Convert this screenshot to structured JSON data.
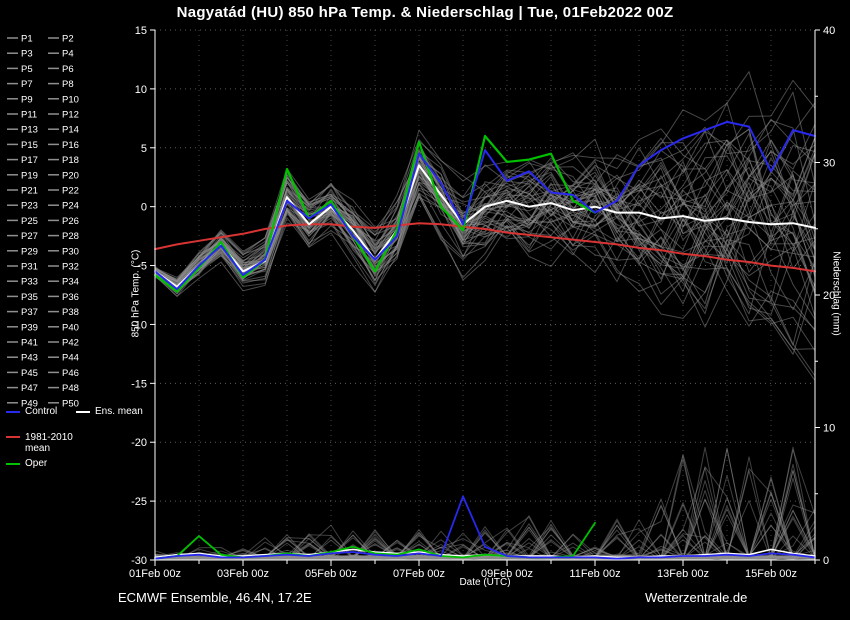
{
  "title": "Nagyatád  (HU)  850 hPa Temp. & Niederschlag | Tue, 01Feb2022 00Z",
  "footer": {
    "left": "ECMWF Ensemble, 46.4N, 17.2E",
    "right": "Wetterzentrale.de"
  },
  "axes": {
    "x_label": "Date (UTC)",
    "y_left_label": "850 hPa Temp. (°C)",
    "y_right_label": "Niederschlag (mm)",
    "x_tick_days": [
      0,
      2,
      4,
      6,
      8,
      10,
      12,
      14
    ],
    "x_tick_labels": [
      "01Feb 00z",
      "03Feb 00z",
      "05Feb 00z",
      "07Feb 00z",
      "09Feb 00z",
      "11Feb 00z",
      "13Feb 00z",
      "15Feb 00z"
    ],
    "temp_ticks": [
      15,
      10,
      5,
      0,
      -5,
      -10,
      -15,
      -20,
      -25,
      -30
    ],
    "precip_ticks": [
      40,
      30,
      20,
      10,
      0
    ],
    "temp_range": [
      -30,
      15
    ],
    "precip_range": [
      0,
      40
    ],
    "x_range_days": [
      0,
      15
    ],
    "grid": "dotted"
  },
  "legend": {
    "members": [
      "P1",
      "P2",
      "P3",
      "P4",
      "P5",
      "P6",
      "P7",
      "P8",
      "P9",
      "P10",
      "P11",
      "P12",
      "P13",
      "P14",
      "P15",
      "P16",
      "P17",
      "P18",
      "P19",
      "P20",
      "P21",
      "P22",
      "P23",
      "P24",
      "P25",
      "P26",
      "P27",
      "P28",
      "P29",
      "P30",
      "P31",
      "P32",
      "P33",
      "P34",
      "P35",
      "P36",
      "P37",
      "P38",
      "P39",
      "P40",
      "P41",
      "P42",
      "P43",
      "P44",
      "P45",
      "P46",
      "P47",
      "P48",
      "P49",
      "P50"
    ],
    "control_label": "Control",
    "ens_mean_label": "Ens. mean",
    "clim_label_1": "1981-2010",
    "clim_label_2": "mean",
    "oper_label": "Oper"
  },
  "colors": {
    "background": "#000000",
    "axis": "#ffffff",
    "grid": "#7a7a7a",
    "member": "#8f8f8f",
    "member_label": "#4040dd",
    "control": "#2828ee",
    "ens_mean": "#ffffff",
    "oper": "#00c000",
    "clim": "#d83434"
  },
  "chart_data": {
    "type": "line",
    "title": "ECMWF ensemble 850 hPa temperature and precipitation, Nagyatád (HU), run Tue 01Feb2022 00Z",
    "x_unit": "days since 01Feb2022 00Z",
    "x_days": [
      0,
      0.5,
      1,
      1.5,
      2,
      2.5,
      3,
      3.5,
      4,
      4.5,
      5,
      5.5,
      6,
      6.5,
      7,
      7.5,
      8,
      8.5,
      9,
      9.5,
      10,
      10.5,
      11,
      11.5,
      12,
      12.5,
      13,
      13.5,
      14,
      14.5,
      15
    ],
    "series": [
      {
        "name": "Ens. mean temp (°C)",
        "color_key": "ens_mean",
        "values": [
          -5.5,
          -6.8,
          -5.0,
          -3.2,
          -5.5,
          -4.6,
          0.8,
          -1.5,
          0.0,
          -2.0,
          -4.5,
          -2.0,
          3.5,
          1.0,
          -1.5,
          0.0,
          0.5,
          0.0,
          0.3,
          -0.3,
          0.0,
          -0.5,
          -0.5,
          -1.0,
          -0.8,
          -1.2,
          -1.0,
          -1.3,
          -1.5,
          -1.4,
          -1.8
        ]
      },
      {
        "name": "Control temp (°C)",
        "color_key": "control",
        "values": [
          -5.5,
          -7.0,
          -5.0,
          -3.3,
          -5.8,
          -4.5,
          0.5,
          -1.0,
          0.2,
          -2.5,
          -4.5,
          -2.5,
          4.5,
          2.0,
          -1.5,
          4.8,
          2.2,
          3.0,
          1.2,
          1.0,
          -0.5,
          0.5,
          3.5,
          4.8,
          5.8,
          6.5,
          7.2,
          6.8,
          3.0,
          6.5,
          6.0
        ]
      },
      {
        "name": "Oper temp (°C)",
        "color_key": "oper",
        "values": [
          -5.8,
          -7.2,
          -5.2,
          -3.0,
          -6.0,
          -4.5,
          3.2,
          -1.0,
          0.5,
          -2.5,
          -5.5,
          -2.0,
          5.5,
          0.0,
          -2.0,
          6.0,
          3.8,
          4.0,
          4.5,
          0.5,
          -0.5,
          null,
          null,
          null,
          null,
          null,
          null,
          null,
          null,
          null,
          null
        ]
      },
      {
        "name": "1981-2010 climate mean temp (°C)",
        "color_key": "clim",
        "values": [
          -3.6,
          -3.2,
          -2.9,
          -2.6,
          -2.3,
          -1.9,
          -1.6,
          -1.5,
          -1.5,
          -1.7,
          -1.8,
          -1.6,
          -1.4,
          -1.5,
          -1.7,
          -1.9,
          -2.2,
          -2.4,
          -2.6,
          -2.8,
          -3.0,
          -3.2,
          -3.5,
          -3.7,
          -4.0,
          -4.2,
          -4.5,
          -4.7,
          -5.0,
          -5.2,
          -5.5
        ]
      }
    ],
    "precip_series": [
      {
        "name": "Ens. mean precip (mm)",
        "color_key": "ens_mean",
        "values": [
          0.2,
          0.4,
          0.5,
          0.3,
          0.3,
          0.4,
          0.5,
          0.4,
          0.6,
          0.8,
          0.6,
          0.5,
          0.6,
          0.4,
          0.3,
          0.4,
          0.3,
          0.3,
          0.3,
          0.2,
          0.3,
          0.2,
          0.2,
          0.3,
          0.3,
          0.4,
          0.5,
          0.4,
          0.8,
          0.5,
          0.3
        ]
      },
      {
        "name": "Control precip (mm)",
        "color_key": "control",
        "values": [
          0.1,
          0.3,
          0.4,
          0.2,
          0.2,
          0.3,
          0.4,
          0.3,
          0.5,
          0.6,
          0.4,
          0.3,
          0.5,
          0.3,
          4.8,
          1.0,
          0.3,
          0.2,
          0.2,
          0.2,
          0.2,
          0.1,
          0.2,
          0.2,
          0.3,
          0.3,
          0.4,
          0.3,
          0.5,
          0.4,
          0.2
        ]
      },
      {
        "name": "Oper precip (mm)",
        "color_key": "oper",
        "values": [
          0.1,
          0.3,
          1.8,
          0.4,
          0.2,
          0.3,
          0.5,
          0.3,
          0.6,
          1.0,
          0.5,
          0.4,
          0.8,
          0.3,
          0.2,
          0.4,
          0.3,
          0.2,
          0.2,
          0.3,
          2.8,
          null,
          null,
          null,
          null,
          null,
          null,
          null,
          null,
          null,
          null
        ]
      }
    ],
    "ensemble": {
      "count": 50,
      "temp_spread": [
        0.4,
        0.6,
        0.8,
        0.9,
        1.0,
        1.2,
        1.4,
        1.4,
        1.5,
        1.7,
        1.9,
        2.0,
        2.0,
        2.2,
        2.5,
        2.8,
        3.0,
        3.2,
        3.4,
        3.6,
        3.8,
        4.2,
        4.6,
        5.0,
        5.5,
        6.0,
        6.5,
        7.0,
        7.2,
        7.5,
        7.8
      ],
      "precip_max": [
        0.8,
        1.5,
        2.0,
        1.2,
        1.0,
        1.8,
        2.5,
        2.0,
        3.0,
        3.5,
        2.5,
        2.0,
        3.0,
        2.5,
        3.5,
        3.0,
        2.5,
        3.5,
        3.0,
        2.5,
        3.0,
        3.5,
        4.0,
        6.0,
        8.0,
        12.0,
        10.0,
        8.0,
        6.5,
        9.0,
        4.0
      ]
    }
  }
}
